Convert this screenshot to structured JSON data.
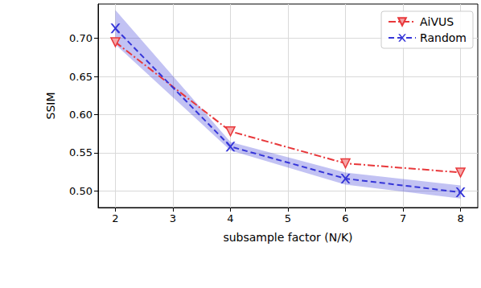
{
  "chart_data": {
    "type": "line",
    "x_label": "subsample factor (N/K)",
    "y_label": "SSIM",
    "xlim": [
      1.7,
      8.3
    ],
    "xticks": [
      2,
      3,
      4,
      5,
      6,
      7,
      8
    ],
    "ylim": [
      0.478,
      0.745
    ],
    "yticks": [
      {
        "value": 0.5,
        "label": "0.50"
      },
      {
        "value": 0.55,
        "label": "0.55"
      },
      {
        "value": 0.6,
        "label": "0.60"
      },
      {
        "value": 0.65,
        "label": "0.65"
      },
      {
        "value": 0.7,
        "label": "0.70"
      }
    ],
    "grid": true,
    "legend": "upper right",
    "x": [
      2,
      4,
      6,
      8
    ],
    "series": [
      {
        "name": "AiVUS",
        "color": "#e8383b",
        "marker": "triangle_down",
        "line_style": "dashdot",
        "values": [
          0.695,
          0.578,
          0.536,
          0.524
        ]
      },
      {
        "name": "Random",
        "color": "#3535d8",
        "marker": "x",
        "line_style": "dashed",
        "values": [
          0.713,
          0.558,
          0.516,
          0.498
        ],
        "lower": [
          0.692,
          0.553,
          0.508,
          0.49
        ],
        "upper": [
          0.737,
          0.564,
          0.524,
          0.507
        ]
      }
    ]
  }
}
